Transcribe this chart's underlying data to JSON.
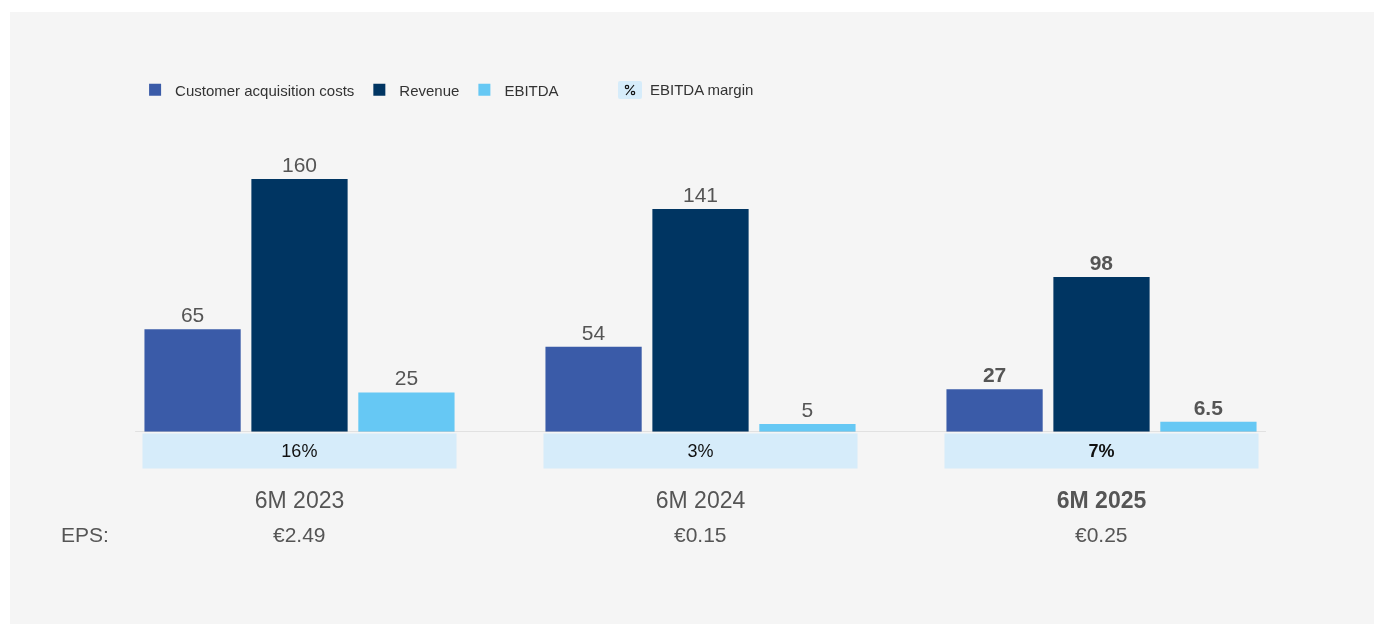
{
  "chart_data": {
    "type": "bar",
    "categories": [
      "6M 2023",
      "6M 2024",
      "6M 2025"
    ],
    "series": [
      {
        "name": "Customer acquisition costs",
        "color": "#3a5ba8",
        "values": [
          65,
          54,
          27
        ]
      },
      {
        "name": "Revenue",
        "color": "#003562",
        "values": [
          160,
          141,
          98
        ]
      },
      {
        "name": "EBITDA",
        "color": "#66c8f4",
        "values": [
          25,
          5,
          6.5
        ]
      }
    ],
    "annotations": [
      "EBITDA margin",
      "16%",
      "3%",
      "7%",
      "EPS:",
      "€2.49",
      "€0.15",
      "€0.25"
    ],
    "data_labels": true,
    "legend": "top left",
    "grid": false
  }
}
